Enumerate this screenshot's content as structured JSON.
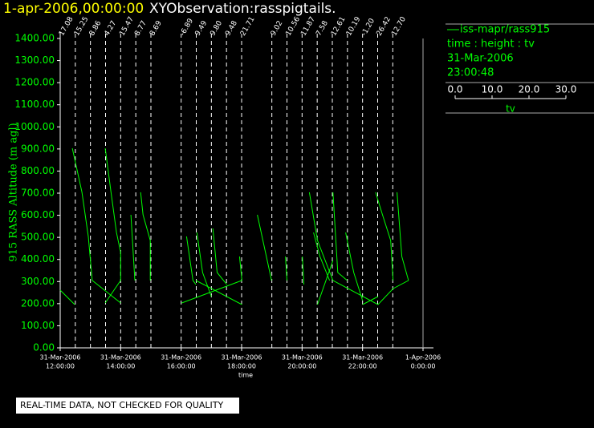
{
  "chart_data": {
    "type": "line",
    "subtitle": "1-apr-2006,00:00:00",
    "title": "XYObservation:rasspigtails.",
    "ylabel": "915 RASS Altitude (m agl)",
    "xlabel": "time",
    "xlim": [
      12,
      24
    ],
    "xticks": [
      {
        "value": 12,
        "date": "31-Mar-2006",
        "time": "12:00:00"
      },
      {
        "value": 14,
        "date": "31-Mar-2006",
        "time": "14:00:00"
      },
      {
        "value": 16,
        "date": "31-Mar-2006",
        "time": "16:00:00"
      },
      {
        "value": 18,
        "date": "31-Mar-2006",
        "time": "18:00:00"
      },
      {
        "value": 20,
        "date": "31-Mar-2006",
        "time": "20:00:00"
      },
      {
        "value": 22,
        "date": "31-Mar-2006",
        "time": "22:00:00"
      },
      {
        "value": 24,
        "date": "1-Apr-2006",
        "time": "0:00:00"
      }
    ],
    "ylim": [
      0,
      1400
    ],
    "yticks": [
      {
        "value": 0,
        "label": "0.00"
      },
      {
        "value": 100,
        "label": "100.00"
      },
      {
        "value": 200,
        "label": "200.00"
      },
      {
        "value": 300,
        "label": "300.00"
      },
      {
        "value": 400,
        "label": "400.00"
      },
      {
        "value": 500,
        "label": "500.00"
      },
      {
        "value": 600,
        "label": "600.00"
      },
      {
        "value": 700,
        "label": "700.00"
      },
      {
        "value": 800,
        "label": "800.00"
      },
      {
        "value": 900,
        "label": "900.00"
      },
      {
        "value": 1000,
        "label": "1000.00"
      },
      {
        "value": 1100,
        "label": "1100.00"
      },
      {
        "value": 1200,
        "label": "1200.00"
      },
      {
        "value": 1300,
        "label": "1300.00"
      },
      {
        "value": 1400,
        "label": "1400.00"
      }
    ],
    "series": [
      {
        "name": "iss-mapr/rass915",
        "color": "#00ff00",
        "x": [
          12,
          12.48,
          null,
          12.4,
          12.72,
          12.93,
          13.06,
          14,
          null,
          13.49,
          13.68,
          13.86,
          14,
          14,
          null,
          13.49,
          14,
          null,
          14.34,
          14.47,
          null,
          14.66,
          14.74,
          14.98,
          14.98,
          null,
          16.02,
          18.01,
          null,
          16.49,
          18.01,
          null,
          16.18,
          16.39,
          16.49,
          null,
          16.52,
          16.71,
          17,
          null,
          17.05,
          17.19,
          17.51,
          null,
          17.93,
          18.01,
          null,
          18.52,
          18.99,
          null,
          19.45,
          19.5,
          null,
          20.01,
          20.06,
          null,
          20.24,
          20.51,
          21.02,
          null,
          20.51,
          21.02,
          null,
          20.38,
          20.59,
          20.91,
          null,
          21.02,
          21.18,
          21.49,
          null,
          21.02,
          22.51,
          23.01,
          23.52,
          null,
          21.44,
          21.71,
          22,
          null,
          22.43,
          22.66,
          22.93,
          23.01,
          null,
          22,
          22.51,
          null,
          23.14,
          23.3,
          23.52
        ],
        "values": [
          261,
          196,
          null,
          903,
          704,
          504,
          305,
          203,
          null,
          903,
          704,
          522,
          432,
          305,
          null,
          203,
          305,
          null,
          602,
          305,
          null,
          704,
          602,
          486,
          305,
          null,
          203,
          305,
          null,
          305,
          196,
          null,
          504,
          305,
          287,
          null,
          522,
          341,
          232,
          null,
          540,
          341,
          287,
          null,
          413,
          305,
          null,
          602,
          305,
          null,
          413,
          305,
          null,
          413,
          287,
          null,
          704,
          486,
          305,
          null,
          196,
          395,
          null,
          522,
          413,
          305,
          null,
          704,
          341,
          305,
          null,
          305,
          196,
          268,
          305,
          null,
          522,
          341,
          214,
          null,
          704,
          602,
          486,
          305,
          null,
          196,
          232,
          null,
          704,
          413,
          305
        ]
      }
    ],
    "profiles": {
      "x": [
        12,
        12.5,
        13,
        13.5,
        14,
        14.5,
        15,
        16,
        16.5,
        17,
        17.5,
        18,
        19,
        19.5,
        20,
        20.5,
        21,
        21.5,
        22,
        22.5,
        23
      ],
      "values": [
        17.08,
        15.25,
        8.86,
        4.27,
        15.47,
        8.77,
        8.69,
        -6.89,
        9.49,
        9.8,
        9.48,
        21.71,
        9.02,
        10.56,
        11.87,
        7.58,
        12.61,
        10.19,
        -1.2,
        26.42,
        12.7
      ],
      "value_labels": [
        "17.08",
        "15.25",
        "8.86",
        "4.27",
        "15.47",
        "8.77",
        "8.69",
        "-6.89",
        "9.49",
        "9.80",
        "9.48",
        "21.71",
        "9.02",
        "10.56",
        "11.87",
        "7.58",
        "12.61",
        "10.19",
        "-1.20",
        "26.42",
        "12.70"
      ]
    },
    "legend_info": [
      "time : height : tv",
      "31-Mar-2006",
      "23:00:48"
    ],
    "scale": {
      "label": "tv",
      "xlim": [
        0,
        30
      ],
      "xticks": [
        {
          "value": 0,
          "label": "0.0"
        },
        {
          "value": 10,
          "label": "10.0"
        },
        {
          "value": 20,
          "label": "20.0"
        },
        {
          "value": 30,
          "label": "30.0"
        }
      ]
    },
    "annotation": "REAL-TIME DATA, NOT CHECKED FOR QUALITY"
  }
}
